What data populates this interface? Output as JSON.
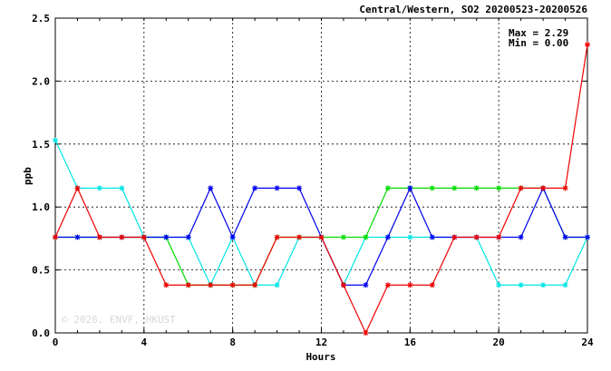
{
  "chart_data": {
    "type": "line",
    "title": "Central/Western, SO2 20200523-20200526",
    "xlabel": "Hours",
    "ylabel": "ppb",
    "xlim": [
      0,
      24
    ],
    "ylim": [
      0,
      2.5
    ],
    "xticks": [
      0,
      4,
      8,
      12,
      16,
      20,
      24
    ],
    "yticks": [
      0.0,
      0.5,
      1.0,
      1.5,
      2.0,
      2.5
    ],
    "ytick_labels": [
      "0.0",
      "0.5",
      "1.0",
      "1.5",
      "2.0",
      "2.5"
    ],
    "grid": true,
    "stats": {
      "max": "Max = 2.29",
      "min": "Min = 0.00"
    },
    "watermark": "© 2026. ENVF, HKUST",
    "x": [
      0,
      1,
      2,
      3,
      4,
      5,
      6,
      7,
      8,
      9,
      10,
      11,
      12,
      13,
      14,
      15,
      16,
      17,
      18,
      19,
      20,
      21,
      22,
      23,
      24
    ],
    "series": [
      {
        "color": "#00e5e5",
        "values": [
          1.53,
          1.15,
          1.15,
          1.15,
          0.76,
          0.76,
          0.76,
          0.38,
          0.76,
          0.38,
          0.38,
          0.76,
          0.76,
          0.38,
          0.76,
          0.76,
          0.76,
          0.76,
          0.76,
          0.76,
          0.38,
          0.38,
          0.38,
          0.38,
          0.76
        ]
      },
      {
        "color": "#00dd00",
        "values": [
          0.76,
          0.76,
          0.76,
          0.76,
          0.76,
          0.76,
          0.38,
          0.38,
          0.38,
          0.38,
          0.76,
          0.76,
          0.76,
          0.76,
          0.76,
          1.15,
          1.15,
          1.15,
          1.15,
          1.15,
          1.15,
          1.15,
          1.15,
          0.76,
          0.76
        ]
      },
      {
        "color": "#0000ee",
        "values": [
          0.76,
          0.76,
          0.76,
          0.76,
          0.76,
          0.76,
          0.76,
          1.15,
          0.76,
          1.15,
          1.15,
          1.15,
          0.76,
          0.38,
          0.38,
          0.76,
          1.15,
          0.76,
          0.76,
          0.76,
          0.76,
          0.76,
          1.15,
          0.76,
          0.76
        ]
      },
      {
        "color": "#ee0000",
        "values": [
          0.76,
          1.15,
          0.76,
          0.76,
          0.76,
          0.38,
          0.38,
          0.38,
          0.38,
          0.38,
          0.76,
          0.76,
          0.76,
          0.38,
          0.0,
          0.38,
          0.38,
          0.38,
          0.76,
          0.76,
          0.76,
          1.15,
          1.15,
          1.15,
          2.29
        ]
      }
    ]
  }
}
